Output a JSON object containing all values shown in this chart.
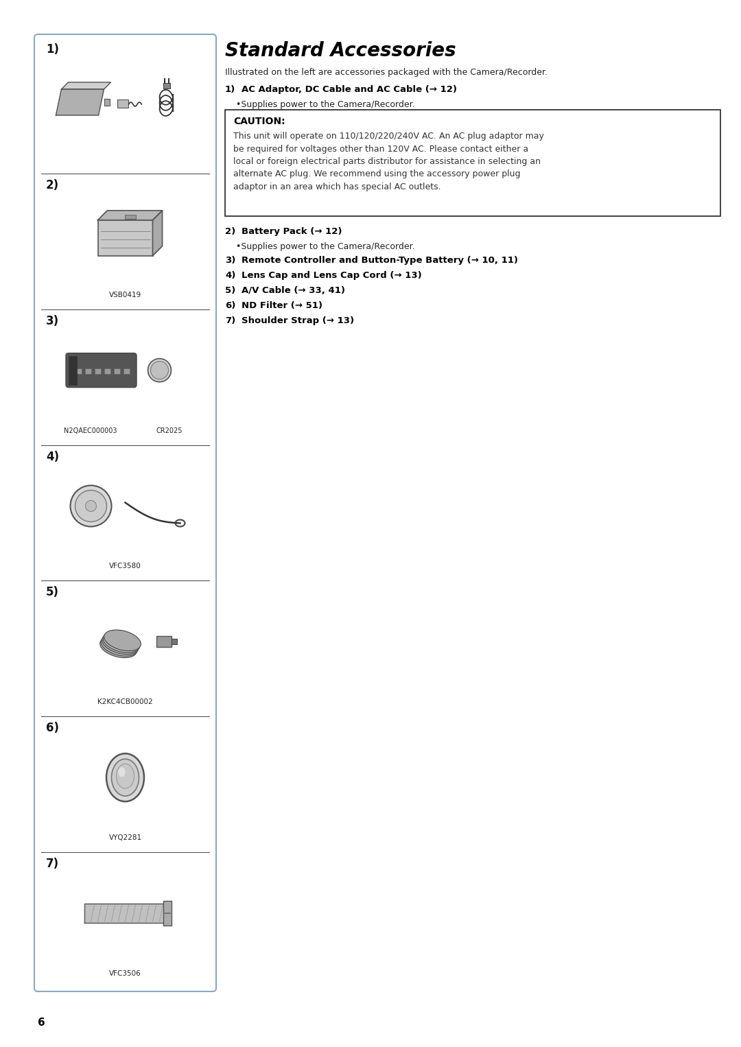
{
  "page_bg": "#ffffff",
  "page_number": "6",
  "title": "Standard Accessories",
  "subtitle": "Illustrated on the left are accessories packaged with the Camera/Recorder.",
  "panel_border": "#8aaabb",
  "item_numbers": [
    "1)",
    "2)",
    "3)",
    "4)",
    "5)",
    "6)",
    "7)"
  ],
  "item_labels": [
    "",
    "VSB0419",
    "",
    "VFC3580",
    "K2KC4CB00002",
    "VYQ2281",
    "VFC3506"
  ],
  "item_sublabels": [
    [],
    [],
    [
      "N2QAEC000003",
      "CR2025"
    ],
    [],
    [],
    [],
    []
  ],
  "right_text": [
    {
      "indent": 0,
      "bold": true,
      "italic": false,
      "text": "1) AC Adaptor, DC Cable and AC Cable (→ 12)"
    },
    {
      "indent": 1,
      "bold": false,
      "italic": false,
      "text": "•Supplies power to the Camera/Recorder."
    },
    {
      "indent": 0,
      "bold": true,
      "italic": false,
      "text": "2) Battery Pack (→ 12)"
    },
    {
      "indent": 1,
      "bold": false,
      "italic": false,
      "text": "•Supplies power to the Camera/Recorder."
    },
    {
      "indent": 0,
      "bold": true,
      "italic": false,
      "text": "3) Remote Controller and Button-Type Battery (→ 10, 11)"
    },
    {
      "indent": 0,
      "bold": true,
      "italic": false,
      "text": "4) Lens Cap and Lens Cap Cord (→ 13)"
    },
    {
      "indent": 0,
      "bold": true,
      "italic": false,
      "text": "5) A/V Cable (→ 33, 41)"
    },
    {
      "indent": 0,
      "bold": true,
      "italic": false,
      "text": "6) ND Filter (→ 51)"
    },
    {
      "indent": 0,
      "bold": true,
      "italic": false,
      "text": "7) Shoulder Strap (→ 13)"
    }
  ],
  "caution_title": "CAUTION:",
  "caution_text": "This unit will operate on 110/120/220/240V AC. An AC plug adaptor may\nbe required for voltages other than 120V AC. Please contact either a\nlocal or foreign electrical parts distributor for assistance in selecting an\nalternate AC plug. We recommend using the accessory power plug\nadaptor in an area which has special AC outlets."
}
